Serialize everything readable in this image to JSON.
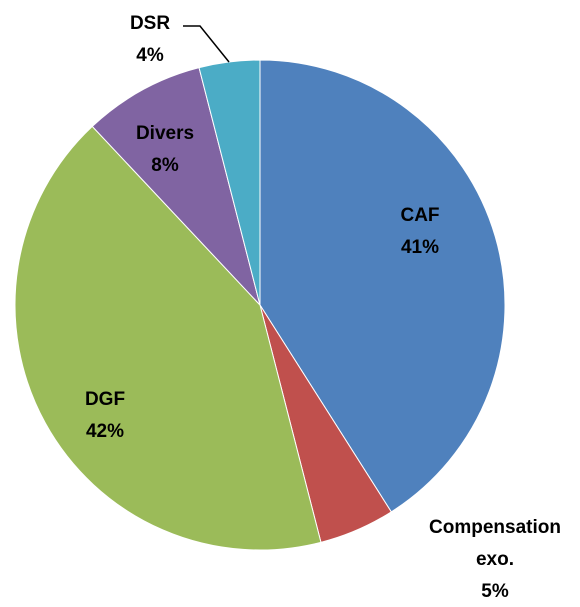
{
  "chart_data": {
    "type": "pie",
    "categories": [
      "CAF",
      "Compensation exo.",
      "DGF",
      "Divers",
      "DSR"
    ],
    "values": [
      41,
      5,
      42,
      8,
      4
    ],
    "value_labels": [
      "41%",
      "5%",
      "42%",
      "8%",
      "4%"
    ],
    "colors": [
      "#4f81bd",
      "#c0504d",
      "#9bbb59",
      "#8064a2",
      "#4bacc6"
    ]
  }
}
